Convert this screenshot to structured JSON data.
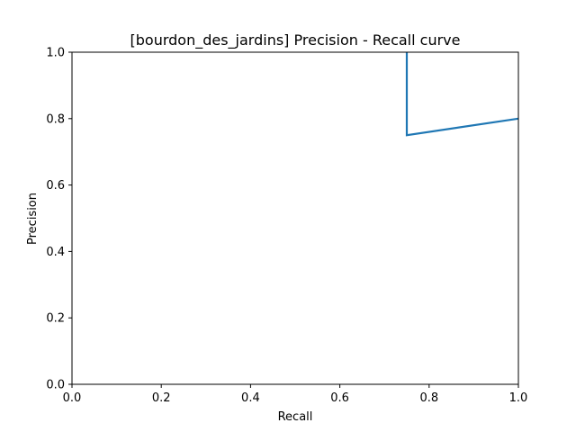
{
  "chart_data": {
    "type": "line",
    "title": "[bourdon_des_jardins] Precision - Recall curve",
    "xlabel": "Recall",
    "ylabel": "Precision",
    "xlim": [
      0.0,
      1.0
    ],
    "ylim": [
      0.0,
      1.0
    ],
    "xticks": [
      "0.0",
      "0.2",
      "0.4",
      "0.6",
      "0.8",
      "1.0"
    ],
    "yticks": [
      "0.0",
      "0.2",
      "0.4",
      "0.6",
      "0.8",
      "1.0"
    ],
    "grid": false,
    "series": [
      {
        "color": "#1f77b4",
        "x": [
          0.75,
          0.75,
          1.0
        ],
        "y": [
          1.0,
          0.75,
          0.8
        ]
      }
    ]
  }
}
